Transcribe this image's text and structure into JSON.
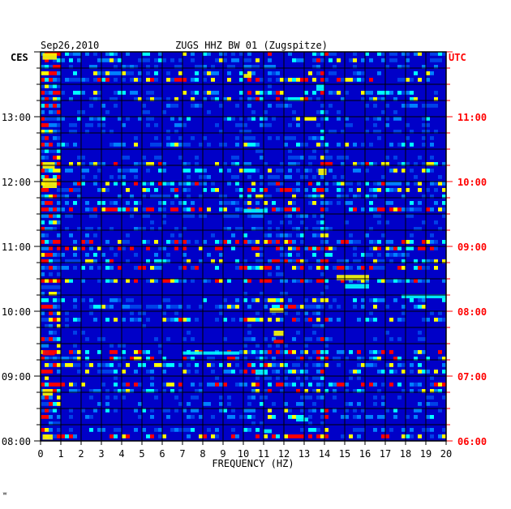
{
  "header": {
    "date": "Sep26,2010",
    "station": "ZUGS HHZ BW 01 (Zugspitze)",
    "left_zone": "CES",
    "right_zone": "UTC"
  },
  "footer": {
    "mark": "ʷ"
  },
  "colors": {
    "background": "#0000c8",
    "grid": "#000000",
    "utc_text": "#ff0000",
    "axis_text": "#000000"
  },
  "chart_data": {
    "type": "heatmap",
    "title": "ZUGS HHZ BW 01 (Zugspitze)",
    "xlabel": "FREQUENCY (HZ)",
    "xlim": [
      0,
      20
    ],
    "x_ticks": [
      "0",
      "1",
      "2",
      "3",
      "4",
      "5",
      "6",
      "7",
      "8",
      "9",
      "10",
      "11",
      "12",
      "13",
      "14",
      "15",
      "16",
      "17",
      "18",
      "19",
      "20"
    ],
    "ylim_hours": [
      8,
      14
    ],
    "left_time_labels": [
      {
        "label": "13:00",
        "hour": 13
      },
      {
        "label": "12:00",
        "hour": 12
      },
      {
        "label": "11:00",
        "hour": 11
      },
      {
        "label": "10:00",
        "hour": 10
      },
      {
        "label": "09:00",
        "hour": 9
      },
      {
        "label": "08:00",
        "hour": 8
      }
    ],
    "right_time_labels": [
      {
        "label": "11:00",
        "hour": 13
      },
      {
        "label": "10:00",
        "hour": 12
      },
      {
        "label": "09:00",
        "hour": 11
      },
      {
        "label": "08:00",
        "hour": 10
      },
      {
        "label": "07:00",
        "hour": 9
      },
      {
        "label": "06:00",
        "hour": 8
      }
    ],
    "grid": true,
    "hot_spots": [
      {
        "f0": 14.6,
        "f1": 16.2,
        "h0": 10.48,
        "h1": 10.56,
        "level": "high"
      },
      {
        "f0": 15.0,
        "f1": 16.2,
        "h0": 10.35,
        "h1": 10.42,
        "level": "mid"
      },
      {
        "f0": 17.8,
        "f1": 20.0,
        "h0": 10.2,
        "h1": 10.26,
        "level": "mid"
      },
      {
        "f0": 11.3,
        "f1": 12.0,
        "h0": 9.98,
        "h1": 10.05,
        "level": "high"
      },
      {
        "f0": 11.5,
        "f1": 12.0,
        "h0": 9.62,
        "h1": 9.7,
        "level": "high"
      },
      {
        "f0": 11.5,
        "f1": 12.0,
        "h0": 9.5,
        "h1": 9.56,
        "level": "peak"
      },
      {
        "f0": 7.0,
        "f1": 9.8,
        "h0": 9.33,
        "h1": 9.38,
        "level": "mid"
      },
      {
        "f0": 10.0,
        "f1": 10.4,
        "h0": 13.6,
        "h1": 13.66,
        "level": "high"
      },
      {
        "f0": 13.6,
        "f1": 14.0,
        "h0": 13.4,
        "h1": 13.5,
        "level": "mid"
      },
      {
        "f0": 13.7,
        "f1": 14.1,
        "h0": 12.1,
        "h1": 12.2,
        "level": "high"
      },
      {
        "f0": 10.0,
        "f1": 11.2,
        "h0": 11.52,
        "h1": 11.58,
        "level": "mid"
      },
      {
        "f0": 10.6,
        "f1": 11.2,
        "h0": 9.02,
        "h1": 9.1,
        "level": "mid"
      },
      {
        "f0": 12.6,
        "f1": 13.2,
        "h0": 8.3,
        "h1": 8.36,
        "level": "mid"
      },
      {
        "f0": 11.0,
        "f1": 11.4,
        "h0": 8.12,
        "h1": 8.18,
        "level": "mid"
      },
      {
        "f0": 0.1,
        "f1": 0.8,
        "h0": 13.88,
        "h1": 13.98,
        "level": "high"
      },
      {
        "f0": 0.1,
        "f1": 0.7,
        "h0": 12.2,
        "h1": 12.3,
        "level": "high"
      },
      {
        "f0": 0.1,
        "f1": 0.8,
        "h0": 11.9,
        "h1": 12.05,
        "level": "high"
      },
      {
        "f0": 0.1,
        "f1": 0.7,
        "h0": 9.32,
        "h1": 9.4,
        "level": "peak"
      },
      {
        "f0": 0.1,
        "f1": 0.6,
        "h0": 8.7,
        "h1": 8.8,
        "level": "high"
      },
      {
        "f0": 0.1,
        "f1": 0.6,
        "h0": 8.02,
        "h1": 8.1,
        "level": "high"
      }
    ]
  }
}
